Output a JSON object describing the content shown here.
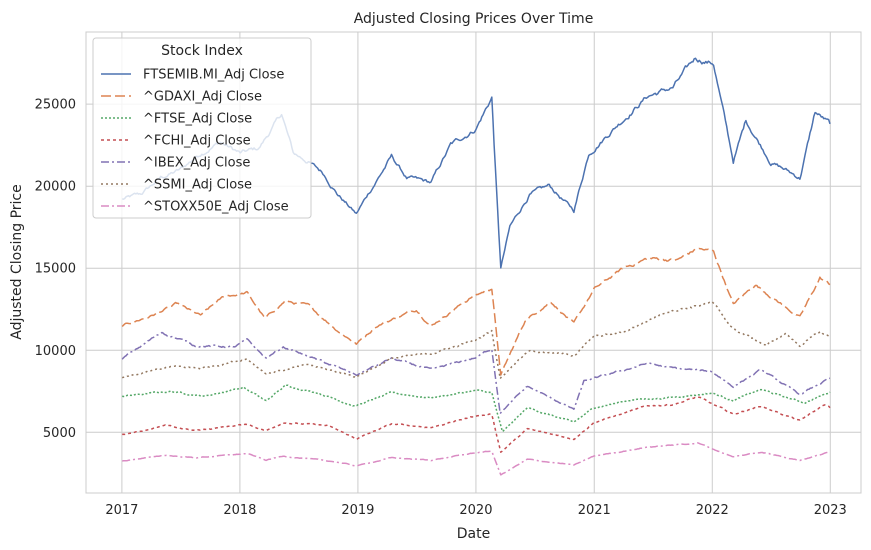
{
  "chart_data": {
    "type": "line",
    "title": "Adjusted Closing Prices Over Time",
    "xlabel": "Date",
    "ylabel": "Adjusted Closing Price",
    "xlim": [
      "2016-09-12",
      "2023-04-06"
    ],
    "ylim": [
      1300,
      29400
    ],
    "x_ticks": [
      "2017",
      "2018",
      "2019",
      "2020",
      "2021",
      "2022",
      "2023"
    ],
    "y_ticks": [
      5000,
      10000,
      15000,
      20000,
      25000
    ],
    "y_tick_labels": [
      "5000",
      "10000",
      "15000",
      "20000",
      "25000"
    ],
    "grid": true,
    "legend": {
      "title": "Stock Index",
      "placement": "top-left"
    },
    "series": [
      {
        "name": "FTSEMIB.MI_Adj Close",
        "color": "#4c72b0",
        "dash": "solid",
        "points": [
          [
            "2017-01-02",
            19200
          ],
          [
            "2017-03-01",
            19500
          ],
          [
            "2017-05-01",
            20500
          ],
          [
            "2017-07-01",
            21000
          ],
          [
            "2017-09-01",
            22000
          ],
          [
            "2017-11-01",
            22700
          ],
          [
            "2018-01-02",
            22000
          ],
          [
            "2018-03-01",
            22300
          ],
          [
            "2018-05-10",
            24400
          ],
          [
            "2018-06-15",
            22000
          ],
          [
            "2018-08-01",
            21500
          ],
          [
            "2018-09-15",
            20800
          ],
          [
            "2018-11-01",
            19500
          ],
          [
            "2018-12-27",
            18300
          ],
          [
            "2019-02-01",
            19500
          ],
          [
            "2019-04-15",
            21800
          ],
          [
            "2019-06-01",
            20500
          ],
          [
            "2019-08-15",
            20200
          ],
          [
            "2019-10-15",
            22500
          ],
          [
            "2019-12-31",
            23500
          ],
          [
            "2020-02-19",
            25400
          ],
          [
            "2020-03-12",
            17000
          ],
          [
            "2020-03-18",
            15000
          ],
          [
            "2020-04-15",
            17500
          ],
          [
            "2020-06-15",
            19500
          ],
          [
            "2020-08-15",
            20000
          ],
          [
            "2020-10-30",
            18500
          ],
          [
            "2020-12-15",
            22000
          ],
          [
            "2021-03-01",
            23500
          ],
          [
            "2021-06-15",
            25500
          ],
          [
            "2021-09-01",
            26000
          ],
          [
            "2021-11-10",
            27800
          ],
          [
            "2022-01-05",
            27500
          ],
          [
            "2022-03-07",
            21500
          ],
          [
            "2022-04-15",
            24000
          ],
          [
            "2022-07-01",
            21500
          ],
          [
            "2022-09-29",
            20500
          ],
          [
            "2022-11-15",
            24500
          ],
          [
            "2022-12-31",
            23800
          ]
        ]
      },
      {
        "name": "^GDAXI_Adj Close",
        "color": "#dd8452",
        "dash": "10 4",
        "points": [
          [
            "2017-01-02",
            11500
          ],
          [
            "2017-04-01",
            12100
          ],
          [
            "2017-06-20",
            12800
          ],
          [
            "2017-09-01",
            12100
          ],
          [
            "2017-11-15",
            13300
          ],
          [
            "2018-01-23",
            13500
          ],
          [
            "2018-03-20",
            11900
          ],
          [
            "2018-05-20",
            13000
          ],
          [
            "2018-08-01",
            12700
          ],
          [
            "2018-10-25",
            11300
          ],
          [
            "2018-12-27",
            10400
          ],
          [
            "2019-03-01",
            11500
          ],
          [
            "2019-07-01",
            12500
          ],
          [
            "2019-08-15",
            11500
          ],
          [
            "2019-12-15",
            13200
          ],
          [
            "2020-02-19",
            13800
          ],
          [
            "2020-03-18",
            8500
          ],
          [
            "2020-06-01",
            11800
          ],
          [
            "2020-08-20",
            13000
          ],
          [
            "2020-10-30",
            11600
          ],
          [
            "2020-12-31",
            13700
          ],
          [
            "2021-04-01",
            15000
          ],
          [
            "2021-06-15",
            15600
          ],
          [
            "2021-09-15",
            15500
          ],
          [
            "2021-11-17",
            16200
          ],
          [
            "2022-01-05",
            16000
          ],
          [
            "2022-03-07",
            12800
          ],
          [
            "2022-05-15",
            14000
          ],
          [
            "2022-09-29",
            12000
          ],
          [
            "2022-11-30",
            14400
          ],
          [
            "2022-12-31",
            14000
          ]
        ]
      },
      {
        "name": "^FTSE_Adj Close",
        "color": "#55a868",
        "dash": "2 2",
        "points": [
          [
            "2017-01-02",
            7200
          ],
          [
            "2017-06-01",
            7500
          ],
          [
            "2017-09-15",
            7200
          ],
          [
            "2018-01-12",
            7750
          ],
          [
            "2018-03-23",
            6900
          ],
          [
            "2018-05-22",
            7850
          ],
          [
            "2018-09-01",
            7400
          ],
          [
            "2018-12-24",
            6600
          ],
          [
            "2019-04-15",
            7400
          ],
          [
            "2019-08-15",
            7100
          ],
          [
            "2019-12-31",
            7550
          ],
          [
            "2020-02-19",
            7400
          ],
          [
            "2020-03-23",
            5000
          ],
          [
            "2020-06-08",
            6500
          ],
          [
            "2020-10-30",
            5600
          ],
          [
            "2020-12-31",
            6500
          ],
          [
            "2021-05-01",
            7000
          ],
          [
            "2021-08-15",
            7100
          ],
          [
            "2021-12-31",
            7400
          ],
          [
            "2022-03-07",
            6950
          ],
          [
            "2022-06-01",
            7600
          ],
          [
            "2022-10-12",
            6800
          ],
          [
            "2022-12-31",
            7450
          ]
        ]
      },
      {
        "name": "^FCHI_Adj Close",
        "color": "#c44e52",
        "dash": "3 3",
        "points": [
          [
            "2017-01-02",
            4850
          ],
          [
            "2017-05-15",
            5400
          ],
          [
            "2017-08-15",
            5100
          ],
          [
            "2018-01-23",
            5500
          ],
          [
            "2018-03-23",
            5100
          ],
          [
            "2018-05-15",
            5600
          ],
          [
            "2018-10-01",
            5400
          ],
          [
            "2018-12-27",
            4600
          ],
          [
            "2019-04-15",
            5500
          ],
          [
            "2019-08-15",
            5300
          ],
          [
            "2019-12-31",
            6000
          ],
          [
            "2020-02-19",
            6100
          ],
          [
            "2020-03-18",
            3800
          ],
          [
            "2020-06-08",
            5200
          ],
          [
            "2020-10-30",
            4600
          ],
          [
            "2020-12-31",
            5600
          ],
          [
            "2021-06-15",
            6600
          ],
          [
            "2021-09-01",
            6700
          ],
          [
            "2021-11-17",
            7150
          ],
          [
            "2022-03-07",
            6100
          ],
          [
            "2022-06-01",
            6600
          ],
          [
            "2022-09-29",
            5700
          ],
          [
            "2022-12-15",
            6700
          ],
          [
            "2022-12-31",
            6500
          ]
        ]
      },
      {
        "name": "^IBEX_Adj Close",
        "color": "#8172b3",
        "dash": "8 3 2 3",
        "points": [
          [
            "2017-01-02",
            9500
          ],
          [
            "2017-05-05",
            11100
          ],
          [
            "2017-08-15",
            10300
          ],
          [
            "2017-12-15",
            10200
          ],
          [
            "2018-01-23",
            10600
          ],
          [
            "2018-03-23",
            9500
          ],
          [
            "2018-05-15",
            10200
          ],
          [
            "2018-09-01",
            9400
          ],
          [
            "2018-12-27",
            8500
          ],
          [
            "2019-04-15",
            9500
          ],
          [
            "2019-08-15",
            8800
          ],
          [
            "2019-12-31",
            9550
          ],
          [
            "2020-02-19",
            10100
          ],
          [
            "2020-03-16",
            6200
          ],
          [
            "2020-06-08",
            7800
          ],
          [
            "2020-10-30",
            6400
          ],
          [
            "2020-11-30",
            8100
          ],
          [
            "2021-06-15",
            9200
          ],
          [
            "2021-09-01",
            8900
          ],
          [
            "2021-12-31",
            8700
          ],
          [
            "2022-03-07",
            7800
          ],
          [
            "2022-06-01",
            8800
          ],
          [
            "2022-09-29",
            7300
          ],
          [
            "2022-12-31",
            8300
          ]
        ]
      },
      {
        "name": "^SSMI_Adj Close",
        "color": "#937860",
        "dash": "2 3",
        "points": [
          [
            "2017-01-02",
            8300
          ],
          [
            "2017-06-01",
            9000
          ],
          [
            "2017-09-01",
            8900
          ],
          [
            "2018-01-23",
            9500
          ],
          [
            "2018-03-23",
            8600
          ],
          [
            "2018-08-01",
            9100
          ],
          [
            "2018-12-27",
            8400
          ],
          [
            "2019-04-15",
            9500
          ],
          [
            "2019-08-15",
            9800
          ],
          [
            "2019-12-31",
            10600
          ],
          [
            "2020-02-19",
            11200
          ],
          [
            "2020-03-16",
            8300
          ],
          [
            "2020-06-08",
            10000
          ],
          [
            "2020-10-30",
            9700
          ],
          [
            "2020-12-31",
            10800
          ],
          [
            "2021-04-01",
            11100
          ],
          [
            "2021-08-15",
            12400
          ],
          [
            "2021-12-31",
            12900
          ],
          [
            "2022-03-07",
            11300
          ],
          [
            "2022-06-17",
            10300
          ],
          [
            "2022-08-15",
            11000
          ],
          [
            "2022-09-29",
            10300
          ],
          [
            "2022-11-30",
            11100
          ],
          [
            "2022-12-31",
            10800
          ]
        ]
      },
      {
        "name": "^STOXX50E_Adj Close",
        "color": "#da8bc3",
        "dash": "8 3 2 3",
        "points": [
          [
            "2017-01-02",
            3250
          ],
          [
            "2017-05-15",
            3600
          ],
          [
            "2017-08-15",
            3450
          ],
          [
            "2018-01-23",
            3700
          ],
          [
            "2018-03-23",
            3300
          ],
          [
            "2018-05-15",
            3550
          ],
          [
            "2018-10-25",
            3200
          ],
          [
            "2018-12-27",
            2950
          ],
          [
            "2019-04-15",
            3450
          ],
          [
            "2019-08-15",
            3300
          ],
          [
            "2019-12-31",
            3750
          ],
          [
            "2020-02-19",
            3850
          ],
          [
            "2020-03-18",
            2400
          ],
          [
            "2020-06-08",
            3350
          ],
          [
            "2020-10-30",
            3000
          ],
          [
            "2020-12-31",
            3550
          ],
          [
            "2021-06-15",
            4100
          ],
          [
            "2021-11-17",
            4350
          ],
          [
            "2022-03-07",
            3500
          ],
          [
            "2022-06-01",
            3800
          ],
          [
            "2022-09-29",
            3300
          ],
          [
            "2022-12-31",
            3800
          ]
        ]
      }
    ]
  }
}
